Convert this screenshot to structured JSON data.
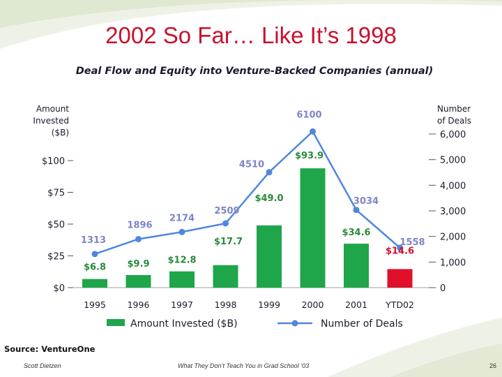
{
  "slide": {
    "title": "2002 So Far… Like It’s 1998",
    "source": "Source: VentureOne",
    "footer_left": "Scott Dietzen",
    "footer_center": "What They Don’t Teach You in Grad School ‘03",
    "page_number": "26"
  },
  "colors": {
    "title": "#c8102e",
    "bar": "#1fa64a",
    "bar_highlight": "#e0102a",
    "line": "#4f86e0",
    "deal_label": "#7e84c8",
    "amount_label": "#2a8a3a",
    "amount_label_highlight": "#d4102a",
    "axis_text": "#1a1a2e"
  },
  "chart_data": {
    "type": "bar",
    "title": "Deal Flow and Equity into Venture-Backed Companies (annual)",
    "categories": [
      "1995",
      "1996",
      "1997",
      "1998",
      "1999",
      "2000",
      "2001",
      "YTD02"
    ],
    "series": [
      {
        "name": "Amount Invested ($B)",
        "type": "bar",
        "axis": "left",
        "values": [
          6.8,
          9.9,
          12.8,
          17.7,
          49.0,
          93.9,
          34.6,
          14.6
        ],
        "labels": [
          "$6.8",
          "$9.9",
          "$12.8",
          "$17.7",
          "$49.0",
          "$93.9",
          "$34.6",
          "$14.6"
        ]
      },
      {
        "name": "Number of Deals",
        "type": "line",
        "axis": "right",
        "values": [
          1313,
          1896,
          2174,
          2509,
          4510,
          6100,
          3034,
          1558
        ],
        "labels": [
          "1313",
          "1896",
          "2174",
          "2509",
          "4510",
          "6100",
          "3034",
          "1558"
        ]
      }
    ],
    "ylabel": "Amount Invested ($B)",
    "y2label": "Number of Deals",
    "ylim": [
      0,
      100
    ],
    "y2lim": [
      0,
      6000
    ],
    "yticks": [
      0,
      25,
      50,
      75,
      100
    ],
    "ytick_labels": [
      "$0",
      "$25",
      "$50",
      "$75",
      "$100"
    ],
    "y2ticks": [
      0,
      1000,
      2000,
      3000,
      4000,
      5000,
      6000
    ],
    "y2tick_labels": [
      "0",
      "1,000",
      "2,000",
      "3,000",
      "4,000",
      "5,000",
      "6,000"
    ],
    "legend_position": "bottom",
    "grid": false
  }
}
